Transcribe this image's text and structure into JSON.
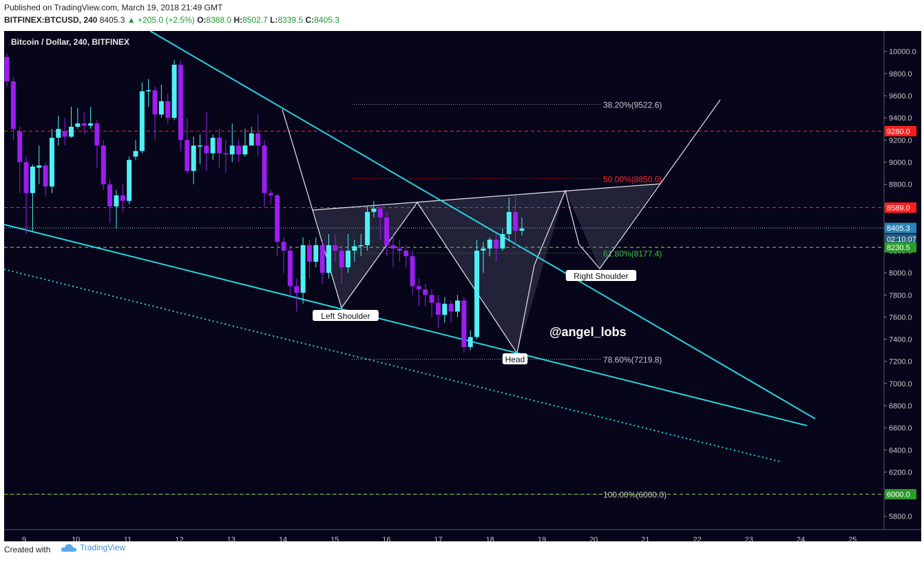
{
  "header": {
    "published": "Published on TradingView.com, March 19, 2018 21:49 GMT",
    "symbol": "BITFINEX:BTCUSD, 240",
    "last": "8405.3",
    "change": "+205.0 (+2.5%)",
    "open": "8388.0",
    "high": "8502.7",
    "low": "8339.5",
    "close": "8405.3"
  },
  "footer": {
    "created_with": "Created with",
    "brand": "TradingView"
  },
  "chart_data": {
    "type": "candlestick",
    "title": "Bitcoin / Dollar, 240, BITFINEX",
    "y_axis_ticks": [
      5800,
      6000,
      6200,
      6400,
      6600,
      6800,
      7000,
      7200,
      7400,
      7600,
      7800,
      8000,
      8200,
      8400,
      8600,
      8800,
      9000,
      9200,
      9400,
      9600,
      9800,
      10000
    ],
    "ylim": [
      5680,
      10160
    ],
    "x_axis_ticks": [
      "9",
      "10",
      "11",
      "12",
      "13",
      "14",
      "15",
      "16",
      "17",
      "18",
      "19",
      "20",
      "21",
      "22",
      "23",
      "24",
      "25"
    ],
    "price_tags": [
      {
        "label": "9280.0",
        "value": 9280,
        "color": "#ff1e1e"
      },
      {
        "label": "8589.0",
        "value": 8589,
        "color": "#ff1e1e"
      },
      {
        "label": "8405.3",
        "value": 8405.3,
        "color": "#2a84b8"
      },
      {
        "label": "02:10:07",
        "value": 8305,
        "color": "#1f5a80"
      },
      {
        "label": "8230.5",
        "value": 8230.5,
        "color": "#2a9c2a"
      },
      {
        "label": "6000.0",
        "value": 6000,
        "color": "#2a9c2a"
      }
    ],
    "fib_levels": [
      {
        "label": "38.20%(9522.6)",
        "value": 9522.6,
        "color": "#c8c8c8"
      },
      {
        "label": "50.00%(8850.0)",
        "value": 8850,
        "color": "#ff2a2a"
      },
      {
        "label": "61.80%(8177.4)",
        "value": 8177.4,
        "color": "#3ecb3e"
      },
      {
        "label": "78.60%(7219.8)",
        "value": 7219.8,
        "color": "#c8c8c8"
      },
      {
        "label": "100.00%(6000.0)",
        "value": 6000,
        "color": "#c8c8c8"
      }
    ],
    "annotations": [
      "Left Shoulder",
      "Head",
      "Right Shoulder"
    ],
    "watermark": "@angel_lobs",
    "colors": {
      "up": "#4ff0f5",
      "down": "#9c1ef0",
      "background": "#06051a",
      "trendline": "#26d5e0"
    },
    "candles": [
      [
        9.95,
        9.73,
        9.98,
        9.68
      ],
      [
        9.73,
        9.3,
        9.77,
        9.2
      ],
      [
        9.28,
        9.0,
        9.32,
        8.72
      ],
      [
        9.0,
        8.72,
        9.05,
        8.35
      ],
      [
        8.72,
        8.96,
        8.98,
        8.38
      ],
      [
        8.95,
        8.97,
        9.15,
        8.8
      ],
      [
        8.97,
        8.78,
        9.0,
        8.7
      ],
      [
        8.78,
        9.22,
        9.3,
        8.72
      ],
      [
        9.22,
        9.3,
        9.42,
        9.15
      ],
      [
        9.28,
        9.23,
        9.4,
        9.15
      ],
      [
        9.23,
        9.32,
        9.5,
        9.22
      ],
      [
        9.32,
        9.35,
        9.49,
        9.3
      ],
      [
        9.35,
        9.33,
        9.45,
        9.25
      ],
      [
        9.33,
        9.35,
        9.5,
        9.3
      ],
      [
        9.35,
        9.15,
        9.38,
        8.95
      ],
      [
        9.15,
        8.8,
        9.2,
        8.75
      ],
      [
        8.8,
        8.6,
        8.85,
        8.45
      ],
      [
        8.6,
        8.7,
        8.75,
        8.4
      ],
      [
        8.7,
        8.65,
        8.8,
        8.55
      ],
      [
        8.65,
        9.02,
        9.05,
        8.62
      ],
      [
        9.05,
        9.1,
        9.2,
        9.02
      ],
      [
        9.1,
        9.64,
        9.72,
        9.08
      ],
      [
        9.64,
        9.65,
        9.75,
        9.5
      ],
      [
        9.65,
        9.43,
        9.68,
        9.2
      ],
      [
        9.43,
        9.55,
        9.7,
        9.4
      ],
      [
        9.55,
        9.4,
        9.62,
        9.35
      ],
      [
        9.4,
        9.88,
        9.92,
        9.38
      ],
      [
        9.88,
        9.2,
        9.92,
        9.1
      ],
      [
        9.2,
        8.92,
        9.4,
        8.9
      ],
      [
        8.92,
        9.15,
        9.23,
        8.8
      ],
      [
        9.15,
        9.15,
        9.25,
        8.98
      ],
      [
        9.15,
        9.08,
        9.45,
        8.92
      ],
      [
        9.08,
        9.22,
        9.25,
        9.02
      ],
      [
        9.22,
        9.08,
        9.3,
        8.95
      ],
      [
        9.08,
        9.07,
        9.2,
        8.9
      ],
      [
        9.07,
        9.15,
        9.35,
        9.0
      ],
      [
        9.15,
        9.07,
        9.2,
        9.0
      ],
      [
        9.07,
        9.15,
        9.3,
        9.05
      ],
      [
        9.15,
        9.26,
        9.32,
        9.15
      ],
      [
        9.26,
        9.15,
        9.43,
        9.05
      ],
      [
        9.15,
        8.72,
        9.2,
        8.6
      ],
      [
        8.72,
        8.7,
        8.75,
        8.62
      ],
      [
        8.7,
        8.28,
        8.72,
        8.15
      ],
      [
        8.28,
        8.2,
        8.32,
        8.0
      ],
      [
        8.2,
        7.88,
        8.25,
        7.8
      ],
      [
        7.88,
        7.82,
        7.95,
        7.65
      ],
      [
        7.82,
        8.25,
        8.32,
        7.72
      ],
      [
        8.25,
        8.1,
        8.3,
        7.95
      ],
      [
        8.1,
        8.25,
        8.32,
        8.05
      ],
      [
        8.25,
        8.0,
        8.3,
        7.9
      ],
      [
        8.0,
        8.25,
        8.35,
        7.95
      ],
      [
        8.25,
        8.2,
        8.35,
        8.1
      ],
      [
        8.2,
        8.05,
        8.25,
        7.9
      ],
      [
        8.05,
        8.2,
        8.35,
        8.0
      ],
      [
        8.2,
        8.24,
        8.3,
        8.1
      ],
      [
        8.24,
        8.25,
        8.35,
        8.15
      ],
      [
        8.25,
        8.55,
        8.6,
        8.2
      ],
      [
        8.55,
        8.58,
        8.65,
        8.5
      ],
      [
        8.58,
        8.5,
        8.62,
        8.3
      ],
      [
        8.5,
        8.25,
        8.55,
        8.15
      ],
      [
        8.25,
        8.22,
        8.35,
        8.05
      ],
      [
        8.22,
        8.2,
        8.3,
        8.1
      ],
      [
        8.2,
        8.15,
        8.25,
        8.05
      ],
      [
        8.15,
        7.88,
        8.2,
        7.8
      ],
      [
        7.88,
        7.85,
        7.95,
        7.7
      ],
      [
        7.85,
        7.8,
        7.9,
        7.7
      ],
      [
        7.8,
        7.73,
        7.85,
        7.6
      ],
      [
        7.73,
        7.62,
        7.8,
        7.5
      ],
      [
        7.62,
        7.72,
        7.78,
        7.55
      ],
      [
        7.72,
        7.65,
        7.75,
        7.55
      ],
      [
        7.65,
        7.75,
        7.8,
        7.6
      ],
      [
        7.75,
        7.33,
        7.78,
        7.28
      ],
      [
        7.33,
        7.42,
        7.48,
        7.3
      ],
      [
        7.42,
        8.2,
        8.3,
        7.4
      ],
      [
        8.2,
        8.22,
        8.28,
        8.0
      ],
      [
        8.22,
        8.3,
        8.32,
        8.15
      ],
      [
        8.3,
        8.22,
        8.35,
        8.1
      ],
      [
        8.22,
        8.35,
        8.4,
        8.2
      ],
      [
        8.35,
        8.55,
        8.68,
        8.28
      ],
      [
        8.55,
        8.38,
        8.7,
        8.25
      ],
      [
        8.38,
        8.4,
        8.5,
        8.34
      ]
    ]
  }
}
